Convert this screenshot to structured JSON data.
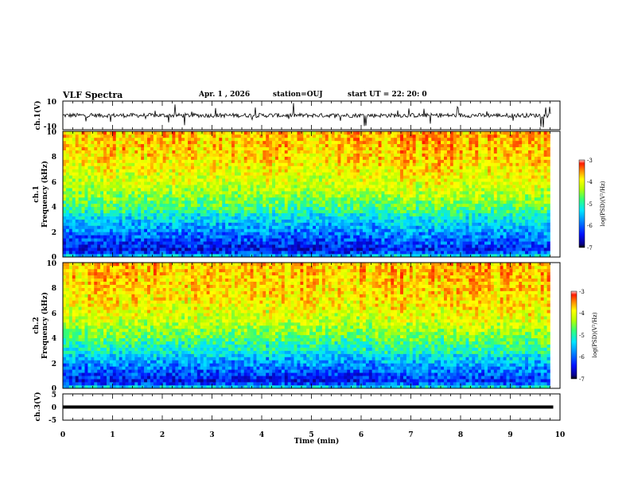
{
  "header": {
    "title": "VLF Spectra",
    "date": "Apr. 1  , 2026",
    "station": "station=OUJ",
    "start_ut": "start  UT =   22: 20: 0"
  },
  "colors": {
    "waveform": "#000000",
    "colormap": [
      "#08008a",
      "#0011ff",
      "#0088ff",
      "#00e5ff",
      "#33ff77",
      "#b8ff00",
      "#ffff00",
      "#ff8800",
      "#ff1a00"
    ]
  },
  "chart_data": [
    {
      "type": "line",
      "panel": "ch1-waveform",
      "ylabel": "ch.1(V)",
      "ylim": [
        -10,
        10
      ],
      "ytick_labels": [
        "10",
        "-10"
      ],
      "xlim": [
        0,
        10
      ],
      "baseline_value": 0,
      "noise_amplitude": 1.5,
      "spike_amplitude": 8,
      "grid": false
    },
    {
      "type": "heatmap",
      "panel": "ch1-spectrogram",
      "ylabel_channel": "ch.1",
      "ylabel": "Frequency (kHz)",
      "ylim": [
        0,
        10
      ],
      "ytick_labels": [
        "0",
        "2",
        "4",
        "6",
        "8",
        "10"
      ],
      "xlim": [
        0,
        9.8
      ],
      "colorbar": {
        "label": "log(PSD)(V²/Hz)",
        "range": [
          -7,
          -3
        ],
        "tick_labels": [
          "-3",
          "-4",
          "-5",
          "-6",
          "-7"
        ]
      },
      "mean_log_psd_by_frequency": {
        "frequency_khz": [
          0,
          0.5,
          1,
          1.5,
          2,
          2.5,
          3,
          3.5,
          4,
          4.5,
          5,
          6,
          7,
          8,
          9,
          10
        ],
        "log_psd": [
          -5.4,
          -6.7,
          -6.4,
          -6.2,
          -6.0,
          -5.8,
          -5.6,
          -5.3,
          -5.0,
          -4.8,
          -4.6,
          -4.3,
          -4.1,
          -3.9,
          -3.8,
          -3.7
        ]
      },
      "discontinuity_min": 6.4
    },
    {
      "type": "heatmap",
      "panel": "ch2-spectrogram",
      "ylabel_channel": "ch.2",
      "ylabel": "Frequency (kHz)",
      "ylim": [
        0,
        10
      ],
      "ytick_labels": [
        "0",
        "2",
        "4",
        "6",
        "8",
        "10"
      ],
      "xlim": [
        0,
        9.8
      ],
      "colorbar": {
        "label": "log(PSD)(V²/Hz)",
        "range": [
          -7,
          -3
        ],
        "tick_labels": [
          "-3",
          "-4",
          "-5",
          "-6",
          "-7"
        ]
      },
      "mean_log_psd_by_frequency": {
        "frequency_khz": [
          0,
          0.5,
          1,
          1.5,
          2,
          2.5,
          3,
          3.5,
          4,
          4.5,
          5,
          6,
          7,
          8,
          9,
          10
        ],
        "log_psd": [
          -5.3,
          -6.6,
          -6.4,
          -6.1,
          -5.9,
          -5.7,
          -5.3,
          -5.2,
          -4.9,
          -4.7,
          -4.5,
          -4.2,
          -4.0,
          -3.9,
          -3.8,
          -3.8
        ]
      },
      "discontinuity_min": 6.4
    },
    {
      "type": "line",
      "panel": "ch3-waveform",
      "ylabel": "ch.3(V)",
      "ylim": [
        -5,
        5
      ],
      "ytick_labels": [
        "5",
        "0",
        "-5"
      ],
      "xlim": [
        0,
        10
      ],
      "xlabel": "Time (min)",
      "xtick_labels": [
        "0",
        "1",
        "2",
        "3",
        "4",
        "5",
        "6",
        "7",
        "8",
        "9",
        "10"
      ],
      "constant_value": 0,
      "grid": false
    }
  ]
}
